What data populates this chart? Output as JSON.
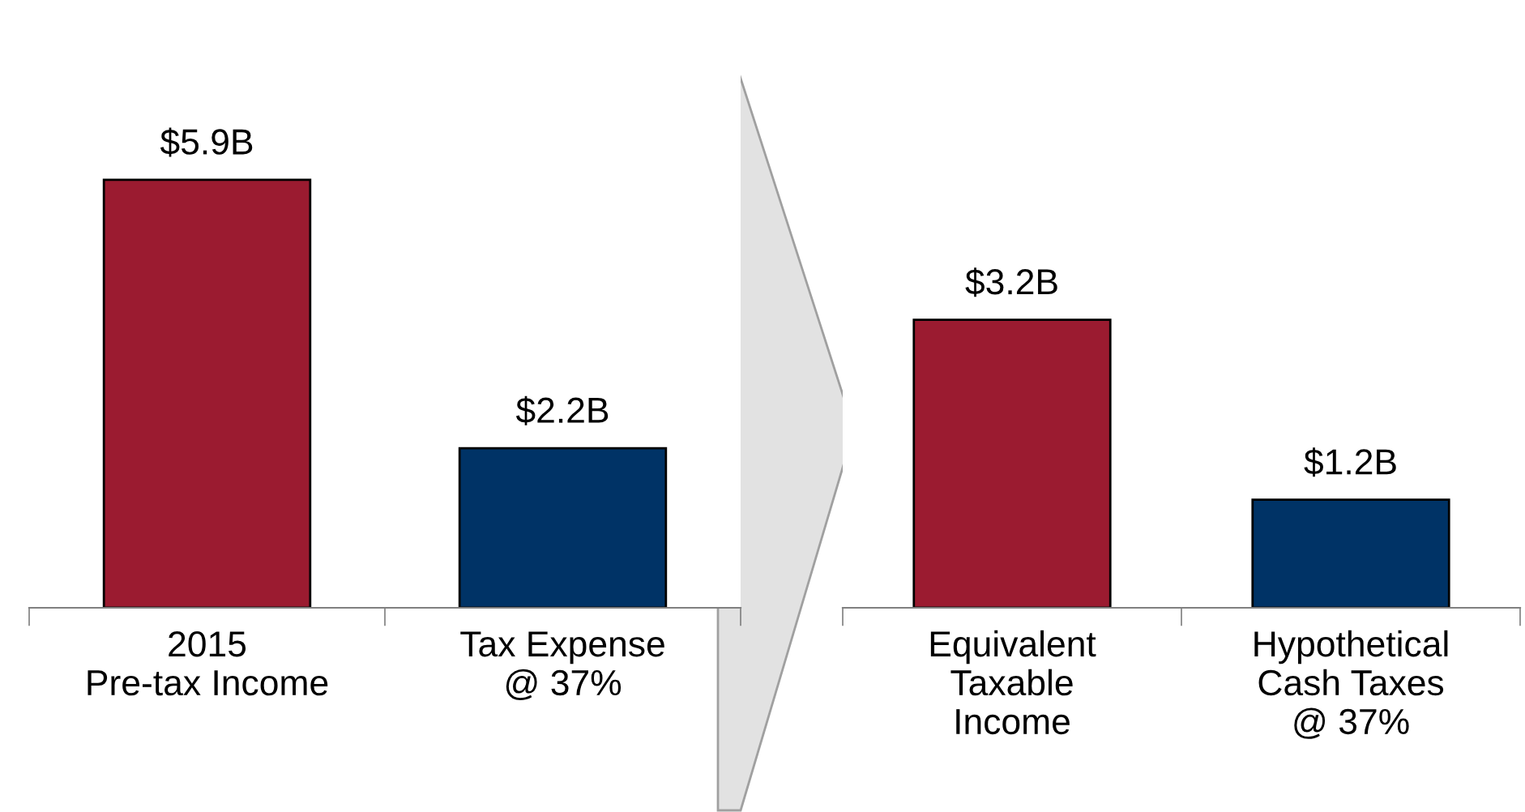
{
  "chart_data": [
    {
      "type": "bar",
      "categories": [
        "2015\nPre-tax Income",
        "Tax Expense\n@ 37%"
      ],
      "values": [
        5.9,
        2.2
      ],
      "colors": [
        "#9b1b30",
        "#003366"
      ],
      "value_labels": [
        "$5.9B",
        "$2.2B"
      ]
    },
    {
      "type": "bar",
      "categories": [
        "Equivalent\nTaxable\nIncome",
        "Hypothetical\nCash Taxes\n@ 37%"
      ],
      "values": [
        3.2,
        1.2
      ],
      "colors": [
        "#9b1b30",
        "#003366"
      ],
      "value_labels": [
        "$3.2B",
        "$1.2B"
      ]
    }
  ]
}
